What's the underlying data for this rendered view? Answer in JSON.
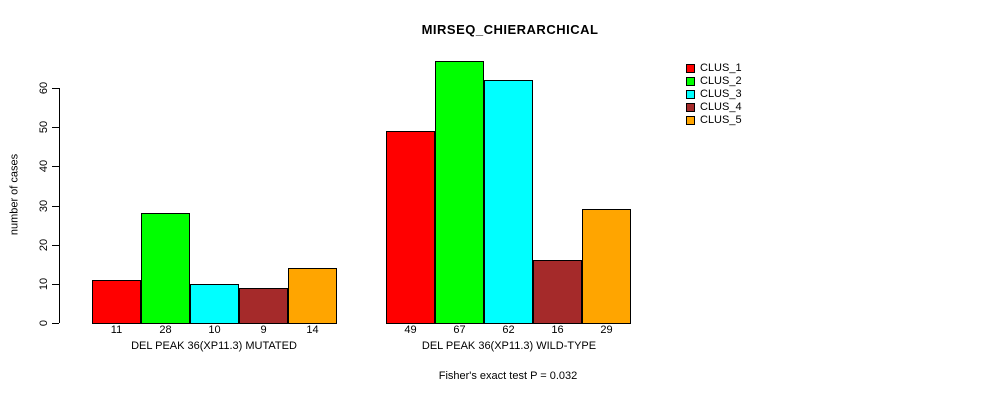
{
  "chart_data": {
    "type": "bar",
    "title": "MIRSEQ_CHIERARCHICAL",
    "ylabel": "number of cases",
    "xlabel": "",
    "ylim": [
      0,
      60
    ],
    "yticks": [
      0,
      10,
      20,
      30,
      40,
      50,
      60
    ],
    "grid": false,
    "legend_position": "right",
    "series": [
      "CLUS_1",
      "CLUS_2",
      "CLUS_3",
      "CLUS_4",
      "CLUS_5"
    ],
    "colors": [
      "#FF0000",
      "#00FF00",
      "#00FFFF",
      "#A52A2A",
      "#FFA500"
    ],
    "groups": [
      {
        "label": "DEL PEAK 36(XP11.3) MUTATED",
        "values": [
          11,
          28,
          10,
          9,
          14
        ]
      },
      {
        "label": "DEL PEAK 36(XP11.3) WILD-TYPE",
        "values": [
          49,
          67,
          62,
          16,
          29
        ]
      }
    ],
    "annotation": "Fisher's exact test P = 0.032"
  }
}
